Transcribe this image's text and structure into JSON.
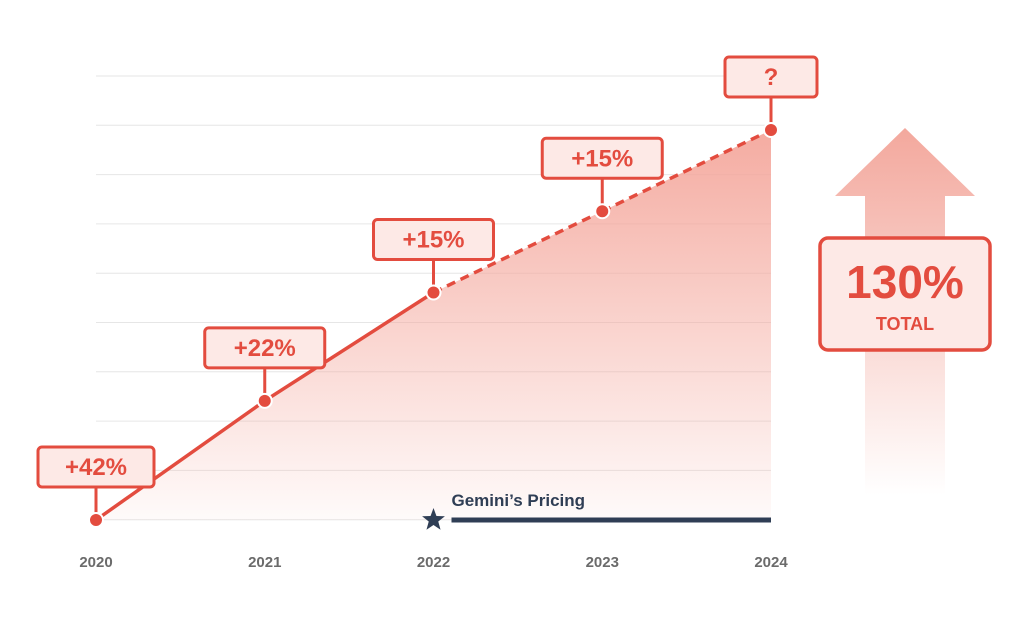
{
  "chart_data": {
    "type": "line",
    "categories": [
      "2020",
      "2021",
      "2022",
      "2023",
      "2024"
    ],
    "values": [
      0,
      22,
      42,
      57,
      72
    ],
    "growth_labels": [
      "+42%",
      "+22%",
      "+15%",
      "+15%",
      "?"
    ],
    "solid_until_index": 2,
    "total": {
      "value": "130%",
      "label": "TOTAL"
    },
    "annotation": {
      "text": "Gemini’s Pricing",
      "start_category": "2022",
      "end_category": "2024"
    },
    "ylim": [
      0,
      72
    ],
    "grid": true,
    "colors": {
      "line": "#e34c3f",
      "fill": "#f4a79c",
      "label_bg": "#fde9e6",
      "pricing": "#2f3e55",
      "ticks": "#6b6b6b",
      "arrow": "#f3a89d"
    }
  }
}
